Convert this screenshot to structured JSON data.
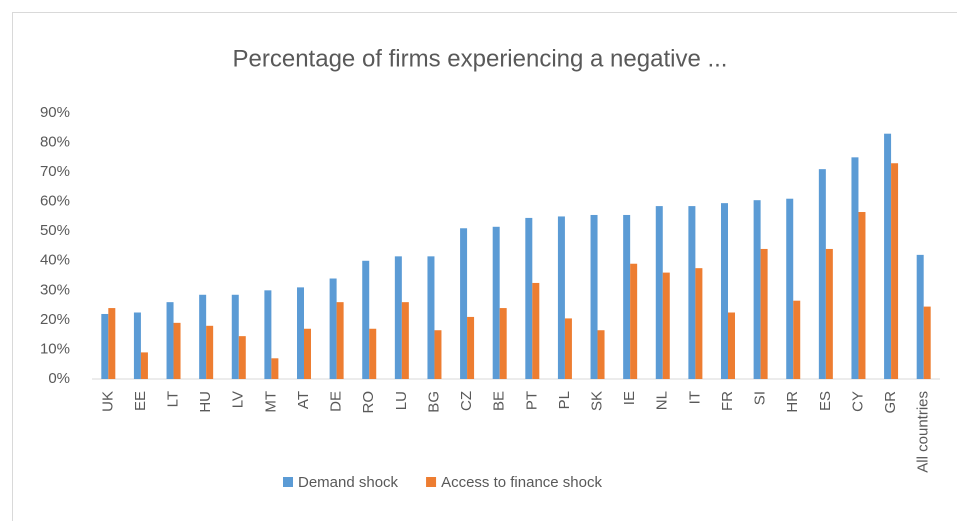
{
  "chart_data": {
    "type": "bar",
    "title": "Percentage of firms experiencing a negative ...",
    "categories": [
      "UK",
      "EE",
      "LT",
      "HU",
      "LV",
      "MT",
      "AT",
      "DE",
      "RO",
      "LU",
      "BG",
      "CZ",
      "BE",
      "PT",
      "PL",
      "SK",
      "IE",
      "NL",
      "IT",
      "FR",
      "SI",
      "HR",
      "ES",
      "CY",
      "GR",
      "All countries"
    ],
    "series": [
      {
        "name": "Demand shock",
        "color": "#5b9bd5",
        "values": [
          22,
          22.5,
          26,
          28.5,
          28.5,
          30,
          31,
          34,
          40,
          41.5,
          41.5,
          51,
          51.5,
          54.5,
          55,
          55.5,
          55.5,
          58.5,
          58.5,
          59.5,
          60.5,
          61,
          71,
          75,
          83,
          42
        ]
      },
      {
        "name": "Access to finance shock",
        "color": "#ed7d31",
        "values": [
          24,
          9,
          19,
          18,
          14.5,
          7,
          17,
          26,
          17,
          26,
          16.5,
          21,
          24,
          32.5,
          20.5,
          16.5,
          39,
          36,
          37.5,
          22.5,
          44,
          26.5,
          44,
          56.5,
          73,
          24.5
        ]
      }
    ],
    "ylim": [
      0,
      90
    ],
    "yticks": [
      {
        "value": 0,
        "label": "0%"
      },
      {
        "value": 10,
        "label": "10%"
      },
      {
        "value": 20,
        "label": "20%"
      },
      {
        "value": 30,
        "label": "30%"
      },
      {
        "value": 40,
        "label": "40%"
      },
      {
        "value": 50,
        "label": "50%"
      },
      {
        "value": 60,
        "label": "60%"
      },
      {
        "value": 70,
        "label": "70%"
      },
      {
        "value": 80,
        "label": "80%"
      },
      {
        "value": 90,
        "label": "90%"
      }
    ],
    "grid": false,
    "legend": "bottom"
  }
}
